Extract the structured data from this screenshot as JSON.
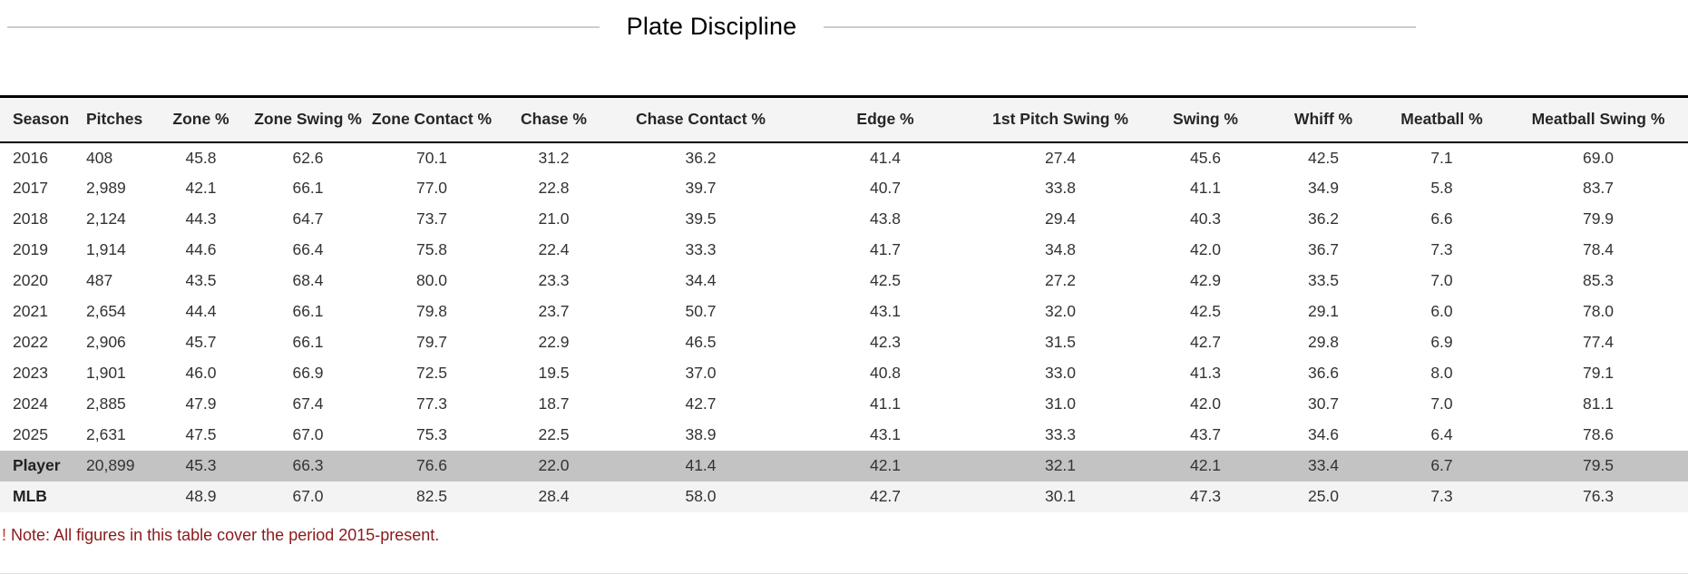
{
  "title": "Plate Discipline",
  "table": {
    "columns": [
      "Season",
      "Pitches",
      "Zone %",
      "Zone Swing %",
      "Zone Contact %",
      "Chase %",
      "Chase Contact %",
      "Edge %",
      "1st Pitch Swing %",
      "Swing %",
      "Whiff %",
      "Meatball %",
      "Meatball Swing %"
    ],
    "rows": [
      {
        "season": "2016",
        "values": [
          "408",
          "45.8",
          "62.6",
          "70.1",
          "31.2",
          "36.2",
          "41.4",
          "27.4",
          "45.6",
          "42.5",
          "7.1",
          "69.0"
        ]
      },
      {
        "season": "2017",
        "values": [
          "2,989",
          "42.1",
          "66.1",
          "77.0",
          "22.8",
          "39.7",
          "40.7",
          "33.8",
          "41.1",
          "34.9",
          "5.8",
          "83.7"
        ]
      },
      {
        "season": "2018",
        "values": [
          "2,124",
          "44.3",
          "64.7",
          "73.7",
          "21.0",
          "39.5",
          "43.8",
          "29.4",
          "40.3",
          "36.2",
          "6.6",
          "79.9"
        ]
      },
      {
        "season": "2019",
        "values": [
          "1,914",
          "44.6",
          "66.4",
          "75.8",
          "22.4",
          "33.3",
          "41.7",
          "34.8",
          "42.0",
          "36.7",
          "7.3",
          "78.4"
        ]
      },
      {
        "season": "2020",
        "values": [
          "487",
          "43.5",
          "68.4",
          "80.0",
          "23.3",
          "34.4",
          "42.5",
          "27.2",
          "42.9",
          "33.5",
          "7.0",
          "85.3"
        ]
      },
      {
        "season": "2021",
        "values": [
          "2,654",
          "44.4",
          "66.1",
          "79.8",
          "23.7",
          "50.7",
          "43.1",
          "32.0",
          "42.5",
          "29.1",
          "6.0",
          "78.0"
        ]
      },
      {
        "season": "2022",
        "values": [
          "2,906",
          "45.7",
          "66.1",
          "79.7",
          "22.9",
          "46.5",
          "42.3",
          "31.5",
          "42.7",
          "29.8",
          "6.9",
          "77.4"
        ]
      },
      {
        "season": "2023",
        "values": [
          "1,901",
          "46.0",
          "66.9",
          "72.5",
          "19.5",
          "37.0",
          "40.8",
          "33.0",
          "41.3",
          "36.6",
          "8.0",
          "79.1"
        ]
      },
      {
        "season": "2024",
        "values": [
          "2,885",
          "47.9",
          "67.4",
          "77.3",
          "18.7",
          "42.7",
          "41.1",
          "31.0",
          "42.0",
          "30.7",
          "7.0",
          "81.1"
        ]
      },
      {
        "season": "2025",
        "values": [
          "2,631",
          "47.5",
          "67.0",
          "75.3",
          "22.5",
          "38.9",
          "43.1",
          "33.3",
          "43.7",
          "34.6",
          "6.4",
          "78.6"
        ]
      }
    ],
    "summary_rows": [
      {
        "season": "Player",
        "values": [
          "20,899",
          "45.3",
          "66.3",
          "76.6",
          "22.0",
          "41.4",
          "42.1",
          "32.1",
          "42.1",
          "33.4",
          "6.7",
          "79.5"
        ],
        "style": "player"
      },
      {
        "season": "MLB",
        "values": [
          "",
          "48.9",
          "67.0",
          "82.5",
          "28.4",
          "58.0",
          "42.7",
          "30.1",
          "47.3",
          "25.0",
          "7.3",
          "76.3"
        ],
        "style": "mlb"
      }
    ]
  },
  "note": {
    "prefix": "!",
    "body": "Note: All figures in this table cover the period 2015-present."
  },
  "colors": {
    "header_bg": "#f4f4f4",
    "player_row_bg": "#c3c3c3",
    "mlb_row_bg": "#f3f3f3",
    "note_color": "#8b1a1a",
    "note_prefix_color": "#c0392b",
    "table_border": "#000000",
    "title_line": "#cccccc"
  }
}
